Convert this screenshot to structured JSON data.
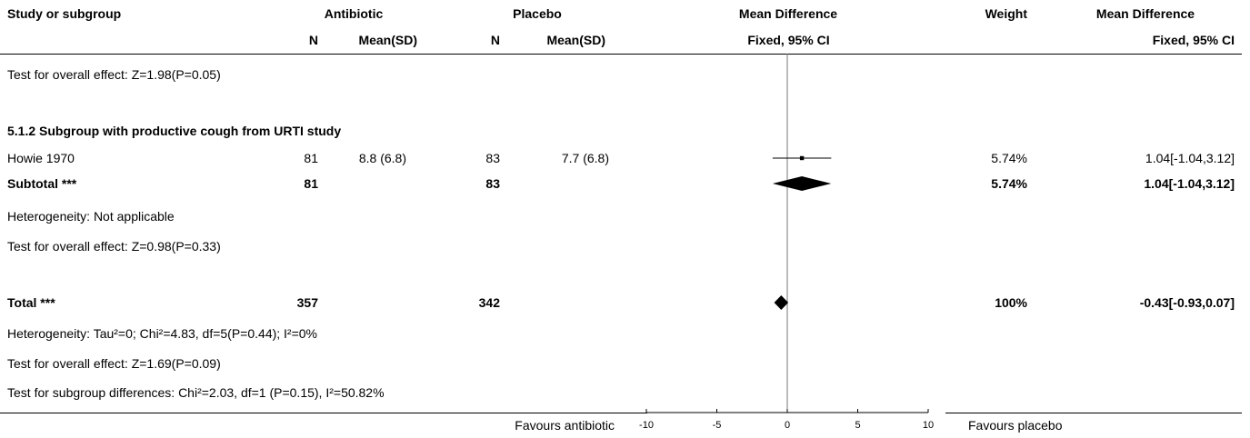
{
  "header": {
    "study": "Study or subgroup",
    "antibiotic": "Antibiotic",
    "placebo": "Placebo",
    "md": "Mean Difference",
    "weight": "Weight",
    "md_right": "Mean Difference",
    "n1": "N",
    "mean1": "Mean(SD)",
    "n2": "N",
    "mean2": "Mean(SD)",
    "md_sub": "Fixed, 95% CI",
    "md_right_sub": "Fixed, 95% CI"
  },
  "rows": {
    "overall_prev": "Test for overall effect: Z=1.98(P=0.05)",
    "subgroup_title": "5.1.2 Subgroup with productive cough from URTI study",
    "howie": {
      "study": "Howie 1970",
      "n1": "81",
      "m1": "8.8 (6.8)",
      "n2": "83",
      "m2": "7.7 (6.8)",
      "weight": "5.74%",
      "ci": "1.04[-1.04,3.12]"
    },
    "subtotal": {
      "label": "Subtotal ***",
      "n1": "81",
      "n2": "83",
      "weight": "5.74%",
      "ci": "1.04[-1.04,3.12]"
    },
    "sub_het": "Heterogeneity: Not applicable",
    "sub_overall": "Test for overall effect: Z=0.98(P=0.33)",
    "total": {
      "label": "Total ***",
      "n1": "357",
      "n2": "342",
      "weight": "100%",
      "ci": "-0.43[-0.93,0.07]"
    },
    "total_het": "Heterogeneity: Tau²=0; Chi²=4.83, df=5(P=0.44); I²=0%",
    "total_overall": "Test for overall effect: Z=1.69(P=0.09)",
    "subgroup_diff": "Test for subgroup differences: Chi²=2.03, df=1 (P=0.15), I²=50.82%"
  },
  "footer": {
    "favours_left": "Favours antibiotic",
    "favours_right": "Favours placebo"
  },
  "chart_data": {
    "type": "forest",
    "xlim": [
      -10,
      10
    ],
    "ticks": [
      -10,
      -5,
      0,
      5,
      10
    ],
    "studies": [
      {
        "name": "Howie 1970",
        "estimate": 1.04,
        "lower": -1.04,
        "upper": 3.12,
        "weight": 5.74
      }
    ],
    "subtotals": [
      {
        "name": "Subtotal ***",
        "estimate": 1.04,
        "lower": -1.04,
        "upper": 3.12
      }
    ],
    "total": {
      "name": "Total ***",
      "estimate": -0.43,
      "lower": -0.93,
      "upper": 0.07
    }
  }
}
